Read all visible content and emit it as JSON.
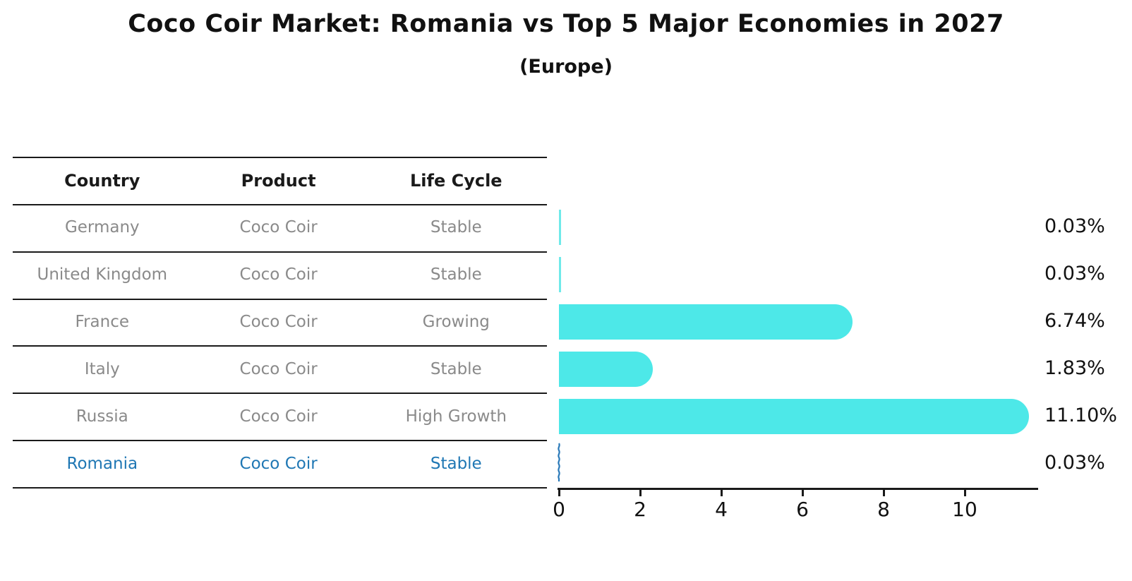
{
  "title": "Coco Coir Market: Romania vs Top 5 Major Economies in 2027",
  "subtitle": "(Europe)",
  "table": {
    "headers": [
      "Country",
      "Product",
      "Life Cycle"
    ],
    "rows": [
      {
        "country": "Germany",
        "product": "Coco Coir",
        "life_cycle": "Stable",
        "highlight": false
      },
      {
        "country": "United Kingdom",
        "product": "Coco Coir",
        "life_cycle": "Stable",
        "highlight": false
      },
      {
        "country": "France",
        "product": "Coco Coir",
        "life_cycle": "Growing",
        "highlight": false
      },
      {
        "country": "Italy",
        "product": "Coco Coir",
        "life_cycle": "Stable",
        "highlight": false
      },
      {
        "country": "Russia",
        "product": "Coco Coir",
        "life_cycle": "High Growth",
        "highlight": false
      },
      {
        "country": "Romania",
        "product": "Coco Coir",
        "life_cycle": "Stable",
        "highlight": true
      }
    ]
  },
  "chart_data": {
    "type": "bar",
    "orientation": "horizontal",
    "title": "Coco Coir Market: Romania vs Top 5 Major Economies in 2027",
    "subtitle": "(Europe)",
    "categories": [
      "Germany",
      "United Kingdom",
      "France",
      "Italy",
      "Russia",
      "Romania"
    ],
    "values": [
      0.03,
      0.03,
      6.74,
      1.83,
      11.1,
      0.03
    ],
    "value_labels": [
      "0.03%",
      "0.03%",
      "6.74%",
      "1.83%",
      "11.10%",
      "0.03%"
    ],
    "x_ticks": [
      0,
      2,
      4,
      6,
      8,
      10
    ],
    "xlim": [
      0,
      11.8
    ],
    "grid": false,
    "legend": false,
    "highlight_index": 5,
    "bar_color": "#4DE8E8",
    "highlight_color": "#2878B8"
  },
  "colors": {
    "bar": "#4DE8E8",
    "highlight_blue": "#1F77B4",
    "table_text_gray": "#8A8A8A",
    "line": "#1A1A1A",
    "text": "#111111"
  }
}
